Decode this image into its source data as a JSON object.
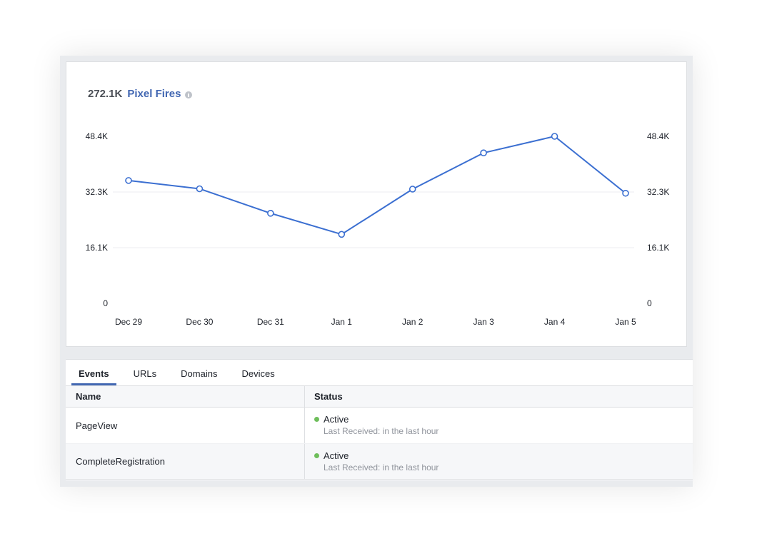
{
  "summary": {
    "total": "272.1K",
    "metric": "Pixel Fires",
    "info_icon": "info-icon"
  },
  "colors": {
    "accent": "#4267b2",
    "line": "#3b6fd1",
    "status_active": "#6ebe5b"
  },
  "chart_data": {
    "type": "line",
    "categories": [
      "Dec 29",
      "Dec 30",
      "Dec 31",
      "Jan 1",
      "Jan 2",
      "Jan 3",
      "Jan 4",
      "Jan 5"
    ],
    "series": [
      {
        "values": [
          35600,
          33200,
          26100,
          20000,
          33100,
          43600,
          48400,
          31900
        ]
      }
    ],
    "y_ticks": [
      "0",
      "16.1K",
      "32.3K",
      "48.4K"
    ],
    "ylim": [
      0,
      48400
    ],
    "grid": true,
    "legend": "none",
    "dual_axis_labels": true
  },
  "tabs": [
    {
      "label": "Events",
      "active": true
    },
    {
      "label": "URLs",
      "active": false
    },
    {
      "label": "Domains",
      "active": false
    },
    {
      "label": "Devices",
      "active": false
    }
  ],
  "table": {
    "headers": {
      "name": "Name",
      "status": "Status"
    },
    "rows": [
      {
        "name": "PageView",
        "status": "Active",
        "detail": "Last Received: in the last hour"
      },
      {
        "name": "CompleteRegistration",
        "status": "Active",
        "detail": "Last Received: in the last hour"
      }
    ]
  }
}
